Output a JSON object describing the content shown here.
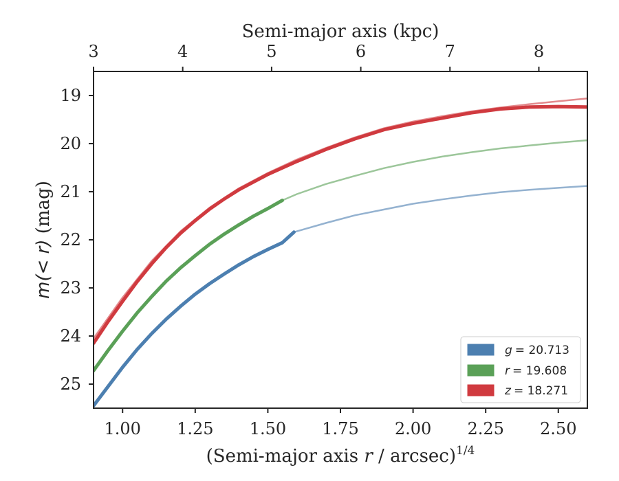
{
  "chart_data": {
    "type": "line",
    "title": "",
    "xlabel_bottom": "(Semi-major axis r / arcsec)^1/4",
    "xlabel_bottom_parts": {
      "pre": "(Semi-major axis ",
      "var": "r",
      "post": " / arcsec)",
      "sup": "1/4"
    },
    "xlabel_top": "Semi-major axis (kpc)",
    "ylabel": "m(< r) (mag)",
    "ylabel_parts": {
      "var": "m(< r)",
      "unit": " (mag)"
    },
    "xlim": [
      0.9,
      2.6
    ],
    "ylim": [
      25.5,
      18.5
    ],
    "y_inverted": true,
    "xticks": [
      1.0,
      1.25,
      1.5,
      1.75,
      2.0,
      2.25,
      2.5
    ],
    "xtick_labels": [
      "1.00",
      "1.25",
      "1.50",
      "1.75",
      "2.00",
      "2.25",
      "2.50"
    ],
    "yticks": [
      19,
      20,
      21,
      22,
      23,
      24,
      25
    ],
    "ytick_labels": [
      "19",
      "20",
      "21",
      "22",
      "23",
      "24",
      "25"
    ],
    "top_xticks_kpc": [
      3,
      4,
      5,
      6,
      7,
      8
    ],
    "top_xtick_positions": [
      0.9,
      1.207,
      1.513,
      1.82,
      2.127,
      2.433
    ],
    "top_xtick_labels": [
      "3",
      "4",
      "5",
      "6",
      "7",
      "8"
    ],
    "grid": false,
    "legend": "bottom-right",
    "series": [
      {
        "name": "g = 20.713",
        "legend_var": "g",
        "legend_value": "= 20.713",
        "color": "#4c7fb0",
        "data": [
          [
            0.9,
            25.45
          ],
          [
            0.95,
            25.05
          ],
          [
            1.0,
            24.65
          ],
          [
            1.05,
            24.28
          ],
          [
            1.1,
            23.95
          ],
          [
            1.15,
            23.65
          ],
          [
            1.2,
            23.38
          ],
          [
            1.25,
            23.13
          ],
          [
            1.3,
            22.91
          ],
          [
            1.35,
            22.71
          ],
          [
            1.4,
            22.52
          ],
          [
            1.45,
            22.35
          ],
          [
            1.5,
            22.2
          ],
          [
            1.55,
            22.06
          ],
          [
            1.59,
            21.84
          ]
        ],
        "model": [
          [
            1.59,
            21.84
          ],
          [
            1.7,
            21.65
          ],
          [
            1.8,
            21.49
          ],
          [
            1.9,
            21.37
          ],
          [
            2.0,
            21.25
          ],
          [
            2.1,
            21.16
          ],
          [
            2.2,
            21.08
          ],
          [
            2.3,
            21.01
          ],
          [
            2.4,
            20.96
          ],
          [
            2.5,
            20.92
          ],
          [
            2.6,
            20.88
          ]
        ]
      },
      {
        "name": "r = 19.608",
        "legend_var": "r",
        "legend_value": "= 19.608",
        "color": "#5aa057",
        "data": [
          [
            0.9,
            24.72
          ],
          [
            0.95,
            24.3
          ],
          [
            1.0,
            23.9
          ],
          [
            1.05,
            23.52
          ],
          [
            1.1,
            23.18
          ],
          [
            1.15,
            22.86
          ],
          [
            1.2,
            22.58
          ],
          [
            1.25,
            22.33
          ],
          [
            1.3,
            22.09
          ],
          [
            1.35,
            21.88
          ],
          [
            1.4,
            21.69
          ],
          [
            1.45,
            21.51
          ],
          [
            1.5,
            21.35
          ],
          [
            1.55,
            21.18
          ]
        ],
        "model": [
          [
            1.55,
            21.18
          ],
          [
            1.6,
            21.05
          ],
          [
            1.7,
            20.84
          ],
          [
            1.8,
            20.67
          ],
          [
            1.9,
            20.51
          ],
          [
            2.0,
            20.38
          ],
          [
            2.1,
            20.27
          ],
          [
            2.2,
            20.18
          ],
          [
            2.3,
            20.1
          ],
          [
            2.4,
            20.04
          ],
          [
            2.5,
            19.98
          ],
          [
            2.6,
            19.93
          ]
        ]
      },
      {
        "name": "z = 18.271",
        "legend_var": "z",
        "legend_value": "= 18.271",
        "color": "#d03a3f",
        "data": [
          [
            0.9,
            24.15
          ],
          [
            0.95,
            23.7
          ],
          [
            1.0,
            23.28
          ],
          [
            1.05,
            22.87
          ],
          [
            1.1,
            22.5
          ],
          [
            1.15,
            22.16
          ],
          [
            1.2,
            21.86
          ],
          [
            1.25,
            21.6
          ],
          [
            1.3,
            21.36
          ],
          [
            1.35,
            21.15
          ],
          [
            1.4,
            20.96
          ],
          [
            1.5,
            20.64
          ],
          [
            1.6,
            20.37
          ],
          [
            1.7,
            20.12
          ],
          [
            1.8,
            19.9
          ],
          [
            1.9,
            19.71
          ],
          [
            2.0,
            19.58
          ],
          [
            2.1,
            19.47
          ],
          [
            2.2,
            19.36
          ],
          [
            2.3,
            19.28
          ],
          [
            2.4,
            19.24
          ],
          [
            2.5,
            19.23
          ],
          [
            2.6,
            19.24
          ]
        ],
        "model": [
          [
            0.9,
            24.05
          ],
          [
            1.0,
            23.2
          ],
          [
            1.1,
            22.44
          ],
          [
            1.2,
            21.82
          ],
          [
            1.3,
            21.33
          ],
          [
            1.4,
            20.93
          ],
          [
            1.5,
            20.61
          ],
          [
            1.6,
            20.33
          ],
          [
            1.7,
            20.09
          ],
          [
            1.8,
            19.87
          ],
          [
            1.9,
            19.68
          ],
          [
            2.0,
            19.54
          ],
          [
            2.1,
            19.43
          ],
          [
            2.2,
            19.33
          ],
          [
            2.3,
            19.25
          ],
          [
            2.4,
            19.18
          ],
          [
            2.5,
            19.12
          ],
          [
            2.6,
            19.06
          ]
        ]
      }
    ]
  }
}
